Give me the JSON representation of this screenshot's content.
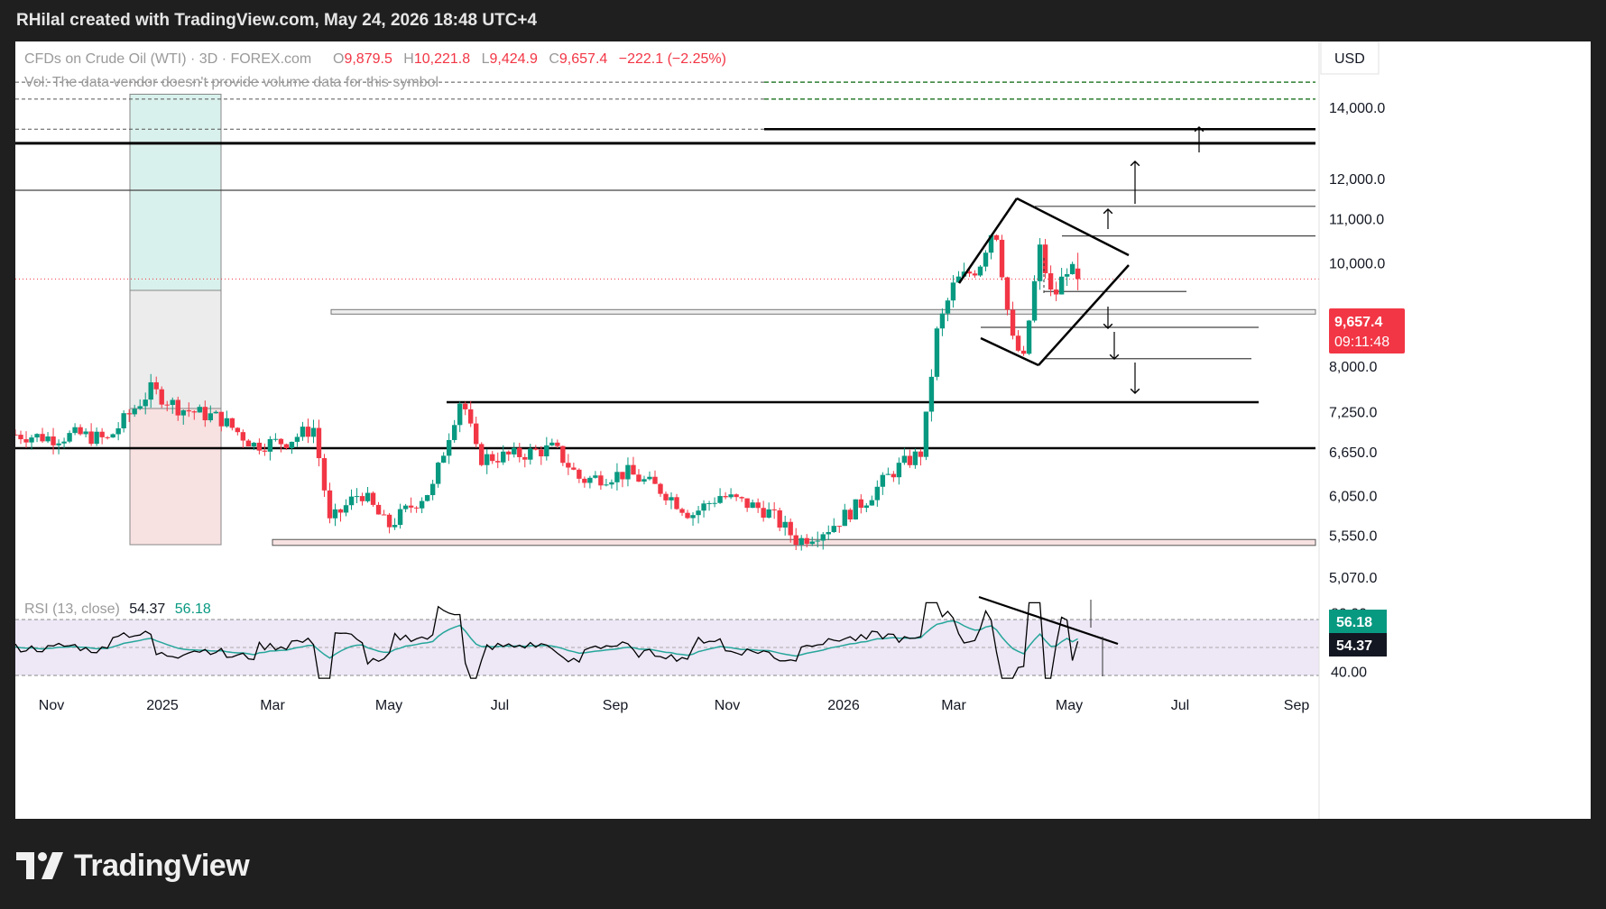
{
  "header": {
    "created_by": "RHilal created with TradingView.com, May 24, 2026 18:48 UTC+4"
  },
  "footer": {
    "brand": "TradingView"
  },
  "legend": {
    "symbol": "CFDs on Crude Oil (WTI) · 3D · FOREX.com",
    "open_label": "O",
    "open": "9,879.5",
    "high_label": "H",
    "high": "10,221.8",
    "low_label": "L",
    "low": "9,424.9",
    "close_label": "C",
    "close": "9,657.4",
    "change": "−222.1 (−2.25%)",
    "volume_note": "Vol: The data vendor doesn't provide volume data for this symbol"
  },
  "currency": "USD",
  "price_badge": {
    "price": "9,657.4",
    "countdown": "09:11:48"
  },
  "rsi_legend": {
    "label": "RSI (13, close)",
    "rsi": "54.37",
    "ma": "56.18"
  },
  "rsi_badges": {
    "ma": "56.18",
    "rsi": "54.37"
  },
  "colors": {
    "up": "#089981",
    "down": "#f23645",
    "rsi_line": "#000000",
    "rsi_ma": "#26a69a",
    "rsi_band": "#ede7f6",
    "badge_red": "#f23645",
    "badge_teal": "#089981",
    "green_level": "#2e7d32"
  },
  "chart_data": [
    {
      "type": "candlestick",
      "symbol": "CFDs on Crude Oil (WTI)",
      "timeframe": "3D",
      "price_scale": "log",
      "y_ticks": [
        "14,000.0",
        "12,000.0",
        "11,000.0",
        "10,000.0",
        "8,800.0",
        "8,000.0",
        "7,250.0",
        "6,650.0",
        "6,050.0",
        "5,550.0",
        "5,070.0"
      ],
      "x_ticks": [
        "Nov",
        "2025",
        "Mar",
        "May",
        "Jul",
        "Sep",
        "Nov",
        "2026",
        "Mar",
        "May",
        "Jul",
        "Sep"
      ],
      "x_range": [
        "2024-10-11",
        "2026-09-28"
      ],
      "last": {
        "open": 9879.5,
        "high": 10221.8,
        "low": 9424.9,
        "close": 9657.4,
        "change": -222.1,
        "change_pct": -2.25
      },
      "price_path": [
        {
          "date": "2024-10-11",
          "close": 6900
        },
        {
          "date": "2024-11-01",
          "close": 6850
        },
        {
          "date": "2024-11-15",
          "close": 6900
        },
        {
          "date": "2024-12-01",
          "close": 6820
        },
        {
          "date": "2024-12-25",
          "close": 7600
        },
        {
          "date": "2025-01-10",
          "close": 7300
        },
        {
          "date": "2025-02-01",
          "close": 7150
        },
        {
          "date": "2025-02-20",
          "close": 6750
        },
        {
          "date": "2025-03-10",
          "close": 6800
        },
        {
          "date": "2025-03-25",
          "close": 7000
        },
        {
          "date": "2025-04-03",
          "close": 5700
        },
        {
          "date": "2025-04-20",
          "close": 6100
        },
        {
          "date": "2025-05-05",
          "close": 5650
        },
        {
          "date": "2025-05-30",
          "close": 6150
        },
        {
          "date": "2025-06-15",
          "close": 7500
        },
        {
          "date": "2025-06-24",
          "close": 6550
        },
        {
          "date": "2025-07-15",
          "close": 6600
        },
        {
          "date": "2025-08-05",
          "close": 6700
        },
        {
          "date": "2025-08-20",
          "close": 6250
        },
        {
          "date": "2025-09-15",
          "close": 6350
        },
        {
          "date": "2025-10-05",
          "close": 6100
        },
        {
          "date": "2025-10-20",
          "close": 5800
        },
        {
          "date": "2025-11-05",
          "close": 6050
        },
        {
          "date": "2025-12-01",
          "close": 5850
        },
        {
          "date": "2025-12-18",
          "close": 5480
        },
        {
          "date": "2026-01-05",
          "close": 5650
        },
        {
          "date": "2026-01-25",
          "close": 6000
        },
        {
          "date": "2026-02-10",
          "close": 6400
        },
        {
          "date": "2026-02-25",
          "close": 6650
        },
        {
          "date": "2026-03-05",
          "close": 8600
        },
        {
          "date": "2026-03-15",
          "close": 9600
        },
        {
          "date": "2026-03-28",
          "close": 9900
        },
        {
          "date": "2026-04-06",
          "close": 10900
        },
        {
          "date": "2026-04-15",
          "close": 8500
        },
        {
          "date": "2026-04-22",
          "close": 8100
        },
        {
          "date": "2026-05-01",
          "close": 10300
        },
        {
          "date": "2026-05-08",
          "close": 9200
        },
        {
          "date": "2026-05-16",
          "close": 9900
        },
        {
          "date": "2026-05-24",
          "close": 9657.4
        }
      ],
      "annotations": {
        "horizontal_levels": [
          14780,
          14250,
          13350,
          12950,
          11700,
          11300,
          10600,
          9400,
          8700,
          8130,
          7400,
          6700
        ],
        "zones": [
          {
            "kind": "range",
            "low": 5430,
            "high": 5500
          },
          {
            "kind": "range",
            "low": 8980,
            "high": 9040
          },
          {
            "kind": "position-box",
            "reward_top": 14400,
            "entry": 7300,
            "stop": 5450
          }
        ],
        "pattern": "diamond"
      }
    },
    {
      "type": "line",
      "name": "RSI (13, close)",
      "y_ticks": [
        "80.00",
        "40.00"
      ],
      "last": {
        "rsi": 54.37,
        "ma": 56.18
      }
    }
  ]
}
